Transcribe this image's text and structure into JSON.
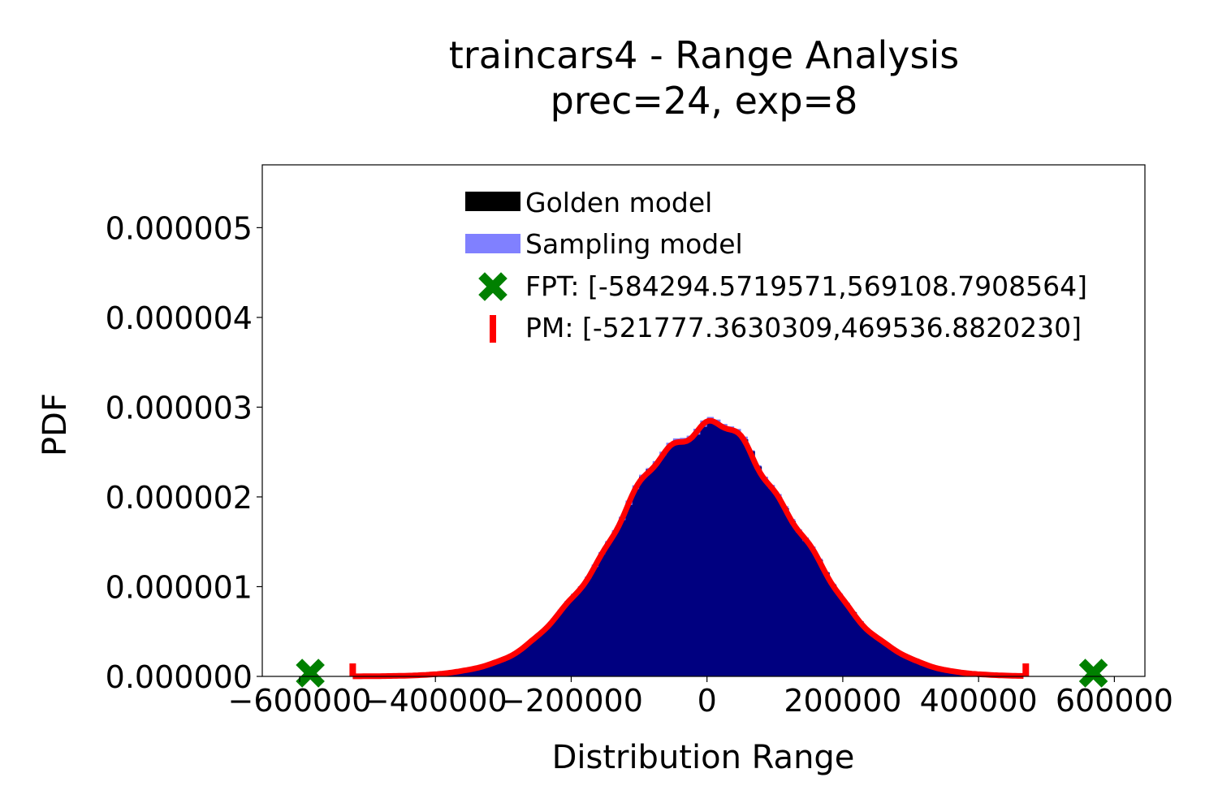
{
  "chart_data": {
    "type": "histogram",
    "title": "traincars4 - Range Analysis",
    "subtitle": "prec=24, exp=8",
    "xlabel": "Distribution Range",
    "ylabel": "PDF",
    "xlim": [
      -655000,
      645000
    ],
    "ylim": [
      0,
      5.7e-06
    ],
    "x_ticks": [
      -600000,
      -400000,
      -200000,
      0,
      200000,
      400000,
      600000
    ],
    "x_tick_labels": [
      "−600000",
      "−400000",
      "−200000",
      "0",
      "200000",
      "400000",
      "600000"
    ],
    "y_ticks": [
      0,
      1e-06,
      2e-06,
      3e-06,
      4e-06,
      5e-06
    ],
    "y_tick_labels": [
      "0.000000",
      "0.000001",
      "0.000002",
      "0.000003",
      "0.000004",
      "0.000005"
    ],
    "grid": false,
    "legend_position": "top-center",
    "distribution": {
      "mean": 0,
      "std": 130000,
      "peak": 2.8e-06
    },
    "series": [
      {
        "name": "Golden model",
        "kind": "histogram",
        "color": "#000080"
      },
      {
        "name": "Sampling model",
        "kind": "histogram",
        "color": "#8080ff"
      },
      {
        "name": "FPT: [-584294.5719571,569108.7908564]",
        "kind": "marker",
        "marker": "X",
        "color": "#008000",
        "x": [
          -584294.5719571,
          569108.7908564
        ]
      },
      {
        "name": "PM: [-521777.3630309,469536.8820230]",
        "kind": "line",
        "color": "#ff0000",
        "x": [
          -521777.3630309,
          469536.882023
        ]
      }
    ]
  }
}
